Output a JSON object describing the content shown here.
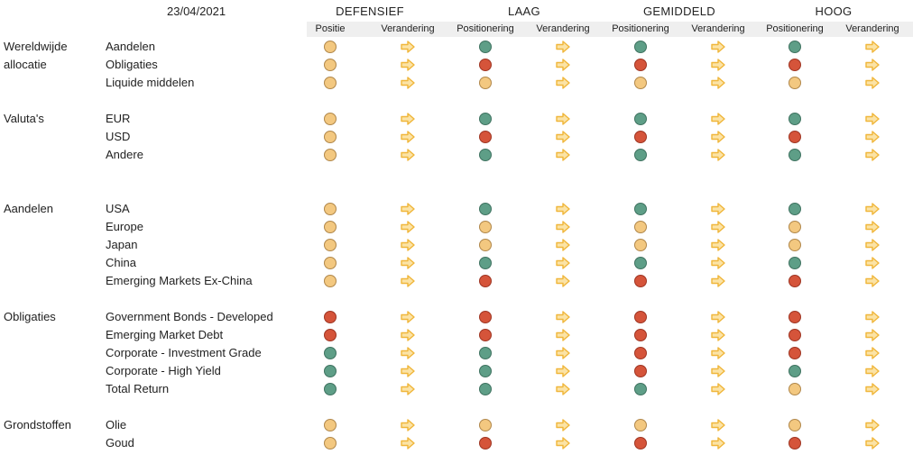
{
  "header": {
    "date": "23/04/2021",
    "profiles": [
      "DEFENSIEF",
      "LAAG",
      "GEMIDDELD",
      "HOOG"
    ],
    "subheaders": [
      "Positie",
      "Verandering",
      "Positionering",
      "Verandering",
      "Positionering",
      "Verandering",
      "Positionering",
      "Verandering"
    ]
  },
  "colors": {
    "amber": "#f3c880",
    "green": "#5e9e87",
    "red": "#d5543a",
    "arrow": "#f0b63a"
  },
  "icons": {
    "position": "circle-indicator-icon",
    "change": "arrow-right-icon"
  },
  "categories": [
    {
      "label": "Wereldwijde\nallocatie",
      "rows": [
        {
          "label": "Aandelen",
          "status": [
            "amber",
            "green",
            "green",
            "green"
          ]
        },
        {
          "label": "Obligaties",
          "status": [
            "amber",
            "red",
            "red",
            "red"
          ]
        },
        {
          "label": "Liquide middelen",
          "status": [
            "amber",
            "amber",
            "amber",
            "amber"
          ]
        }
      ]
    },
    {
      "label": "Valuta's",
      "rows": [
        {
          "label": "EUR",
          "status": [
            "amber",
            "green",
            "green",
            "green"
          ]
        },
        {
          "label": "USD",
          "status": [
            "amber",
            "red",
            "red",
            "red"
          ]
        },
        {
          "label": "Andere",
          "status": [
            "amber",
            "green",
            "green",
            "green"
          ]
        }
      ]
    },
    {
      "label": "Aandelen",
      "rows": [
        {
          "label": "USA",
          "status": [
            "amber",
            "green",
            "green",
            "green"
          ]
        },
        {
          "label": "Europe",
          "status": [
            "amber",
            "amber",
            "amber",
            "amber"
          ]
        },
        {
          "label": "Japan",
          "status": [
            "amber",
            "amber",
            "amber",
            "amber"
          ]
        },
        {
          "label": "China",
          "status": [
            "amber",
            "green",
            "green",
            "green"
          ]
        },
        {
          "label": "Emerging Markets Ex-China",
          "status": [
            "amber",
            "red",
            "red",
            "red"
          ]
        }
      ]
    },
    {
      "label": "Obligaties",
      "rows": [
        {
          "label": "Government Bonds - Developed",
          "status": [
            "red",
            "red",
            "red",
            "red"
          ]
        },
        {
          "label": "Emerging Market Debt",
          "status": [
            "red",
            "red",
            "red",
            "red"
          ]
        },
        {
          "label": "Corporate - Investment Grade",
          "status": [
            "green",
            "green",
            "red",
            "red"
          ]
        },
        {
          "label": "Corporate - High Yield",
          "status": [
            "green",
            "green",
            "red",
            "green"
          ]
        },
        {
          "label": "Total Return",
          "status": [
            "green",
            "green",
            "green",
            "amber"
          ]
        }
      ]
    },
    {
      "label": "Grondstoffen",
      "rows": [
        {
          "label": "Olie",
          "status": [
            "amber",
            "amber",
            "amber",
            "amber"
          ]
        },
        {
          "label": "Goud",
          "status": [
            "amber",
            "red",
            "red",
            "red"
          ]
        }
      ]
    }
  ]
}
